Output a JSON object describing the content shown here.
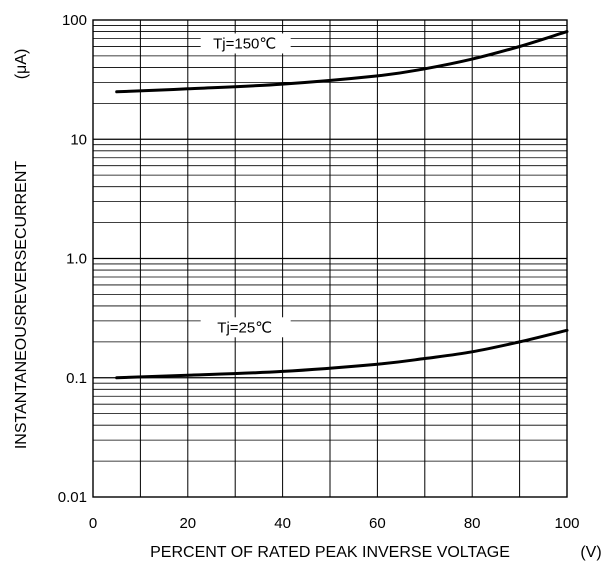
{
  "chart_data": {
    "type": "line",
    "title": "",
    "xlabel": "PERCENT OF RATED PEAK INVERSE VOLTAGE",
    "xlabel_unit": "(V)",
    "ylabel": "INSTANTANEOUSREVERSECURRENT",
    "ylabel_unit": "(μA)",
    "xlim": [
      0,
      100
    ],
    "ylim": [
      0.01,
      100
    ],
    "yscale": "log",
    "grid": true,
    "x_ticks": [
      0,
      20,
      40,
      60,
      80,
      100
    ],
    "x_tick_labels": [
      "0",
      "20",
      "40",
      "60",
      "80",
      "100"
    ],
    "y_ticks": [
      0.01,
      0.1,
      1,
      10,
      100
    ],
    "y_tick_labels": [
      "0.01",
      "0.1",
      "1.0",
      "10",
      "100"
    ],
    "series": [
      {
        "name": "Tj=150℃",
        "x": [
          5,
          20,
          40,
          60,
          70,
          80,
          90,
          100
        ],
        "y": [
          25,
          26.5,
          29,
          34,
          39,
          47,
          60,
          80
        ]
      },
      {
        "name": "Tj=25℃",
        "x": [
          5,
          20,
          40,
          60,
          70,
          80,
          90,
          100
        ],
        "y": [
          0.1,
          0.105,
          0.113,
          0.13,
          0.145,
          0.165,
          0.2,
          0.25
        ]
      }
    ]
  }
}
